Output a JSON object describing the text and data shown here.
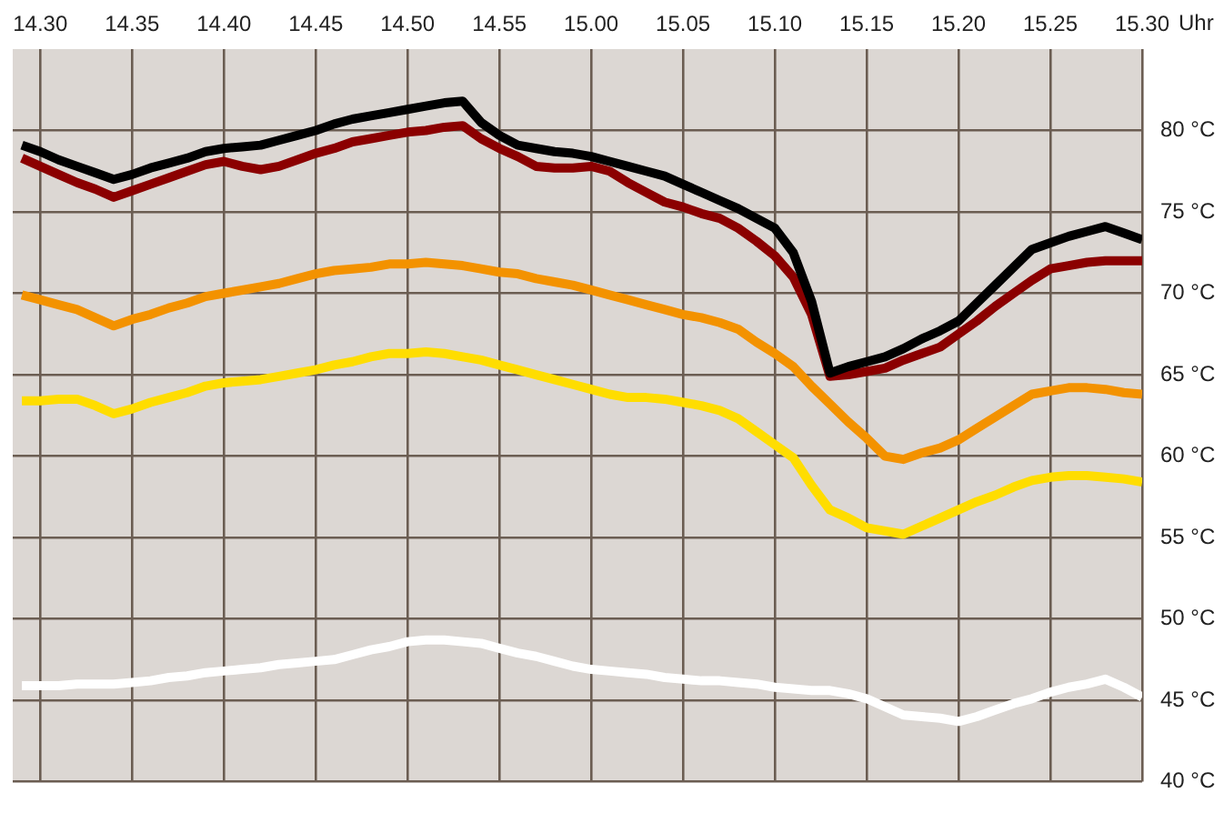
{
  "chart_data": {
    "type": "line",
    "xlabel": "Uhr",
    "ylim": [
      40,
      85
    ],
    "categories": [
      null,
      "14.30",
      null,
      null,
      null,
      null,
      "14.35",
      null,
      null,
      null,
      null,
      "14.40",
      null,
      null,
      null,
      null,
      "14.45",
      null,
      null,
      null,
      null,
      "14.50",
      null,
      null,
      null,
      null,
      "14.55",
      null,
      null,
      null,
      null,
      "15.00",
      null,
      null,
      null,
      null,
      "15.05",
      null,
      null,
      null,
      null,
      "15.10",
      null,
      null,
      null,
      null,
      "15.15",
      null,
      null,
      null,
      null,
      "15.20",
      null,
      null,
      null,
      null,
      "15.25",
      null,
      null,
      null,
      null,
      "15.30"
    ],
    "yticks": [
      {
        "value": 40,
        "label": "40 °C"
      },
      {
        "value": 45,
        "label": "45 °C"
      },
      {
        "value": 50,
        "label": "50 °C"
      },
      {
        "value": 55,
        "label": "55 °C"
      },
      {
        "value": 60,
        "label": "60 °C"
      },
      {
        "value": 65,
        "label": "65 °C"
      },
      {
        "value": 70,
        "label": "70 °C"
      },
      {
        "value": 75,
        "label": "75 °C"
      },
      {
        "value": 80,
        "label": "80 °C"
      }
    ],
    "grid": true,
    "legend": false,
    "marker": "none",
    "line_style": "solid",
    "series": [
      {
        "color": "#000000",
        "values": [
          79.1,
          78.7,
          78.2,
          77.8,
          77.4,
          77.0,
          77.3,
          77.7,
          78.0,
          78.3,
          78.7,
          78.9,
          79.0,
          79.1,
          79.4,
          79.7,
          80.0,
          80.4,
          80.7,
          80.9,
          81.1,
          81.3,
          81.5,
          81.7,
          81.8,
          80.5,
          79.7,
          79.1,
          78.9,
          78.7,
          78.6,
          78.4,
          78.1,
          77.8,
          77.5,
          77.2,
          76.7,
          76.2,
          75.7,
          75.2,
          74.6,
          74.0,
          72.5,
          69.5,
          65.1,
          65.5,
          65.8,
          66.1,
          66.6,
          67.2,
          67.7,
          68.3,
          69.4,
          70.5,
          71.6,
          72.7,
          73.1,
          73.5,
          73.8,
          74.1,
          73.7,
          73.3
        ]
      },
      {
        "color": "#8b0000",
        "values": [
          78.3,
          77.8,
          77.3,
          76.8,
          76.4,
          75.9,
          76.3,
          76.7,
          77.1,
          77.5,
          77.9,
          78.1,
          77.8,
          77.6,
          77.8,
          78.2,
          78.6,
          78.9,
          79.3,
          79.5,
          79.7,
          79.9,
          80.0,
          80.2,
          80.3,
          79.5,
          78.9,
          78.4,
          77.8,
          77.7,
          77.7,
          77.8,
          77.5,
          76.8,
          76.2,
          75.6,
          75.3,
          74.9,
          74.6,
          74.0,
          73.2,
          72.3,
          71.0,
          68.7,
          64.9,
          65.0,
          65.2,
          65.4,
          65.9,
          66.3,
          66.7,
          67.5,
          68.3,
          69.2,
          70.0,
          70.8,
          71.5,
          71.7,
          71.9,
          72.0,
          72.0,
          72.0
        ]
      },
      {
        "color": "#f39200",
        "values": [
          69.9,
          69.6,
          69.3,
          69.0,
          68.5,
          68.0,
          68.4,
          68.7,
          69.1,
          69.4,
          69.8,
          70.0,
          70.2,
          70.4,
          70.6,
          70.9,
          71.2,
          71.4,
          71.5,
          71.6,
          71.8,
          71.8,
          71.9,
          71.8,
          71.7,
          71.5,
          71.3,
          71.2,
          70.9,
          70.7,
          70.5,
          70.2,
          69.9,
          69.6,
          69.3,
          69.0,
          68.7,
          68.5,
          68.2,
          67.8,
          67.0,
          66.3,
          65.5,
          64.3,
          63.2,
          62.1,
          61.1,
          60.0,
          59.8,
          60.2,
          60.5,
          61.0,
          61.7,
          62.4,
          63.1,
          63.8,
          64.0,
          64.2,
          64.2,
          64.1,
          63.9,
          63.8
        ]
      },
      {
        "color": "#ffdd00",
        "values": [
          63.4,
          63.4,
          63.5,
          63.5,
          63.1,
          62.6,
          62.9,
          63.3,
          63.6,
          63.9,
          64.3,
          64.5,
          64.6,
          64.7,
          64.9,
          65.1,
          65.3,
          65.6,
          65.8,
          66.1,
          66.3,
          66.3,
          66.4,
          66.3,
          66.1,
          65.9,
          65.6,
          65.3,
          65.0,
          64.7,
          64.4,
          64.1,
          63.8,
          63.6,
          63.6,
          63.5,
          63.3,
          63.1,
          62.8,
          62.3,
          61.5,
          60.7,
          59.9,
          58.2,
          56.7,
          56.2,
          55.6,
          55.4,
          55.2,
          55.7,
          56.2,
          56.7,
          57.2,
          57.6,
          58.1,
          58.5,
          58.7,
          58.8,
          58.8,
          58.7,
          58.6,
          58.4
        ]
      },
      {
        "color": "#ffffff",
        "values": [
          45.9,
          45.9,
          45.9,
          46.0,
          46.0,
          46.0,
          46.1,
          46.2,
          46.4,
          46.5,
          46.7,
          46.8,
          46.9,
          47.0,
          47.2,
          47.3,
          47.4,
          47.5,
          47.8,
          48.1,
          48.3,
          48.6,
          48.7,
          48.7,
          48.6,
          48.5,
          48.2,
          47.9,
          47.7,
          47.4,
          47.1,
          46.9,
          46.8,
          46.7,
          46.6,
          46.4,
          46.3,
          46.2,
          46.2,
          46.1,
          46.0,
          45.8,
          45.7,
          45.6,
          45.6,
          45.4,
          45.1,
          44.6,
          44.1,
          44.0,
          43.9,
          43.7,
          44.0,
          44.4,
          44.8,
          45.1,
          45.5,
          45.8,
          46.0,
          46.3,
          45.8,
          45.2
        ]
      }
    ]
  }
}
